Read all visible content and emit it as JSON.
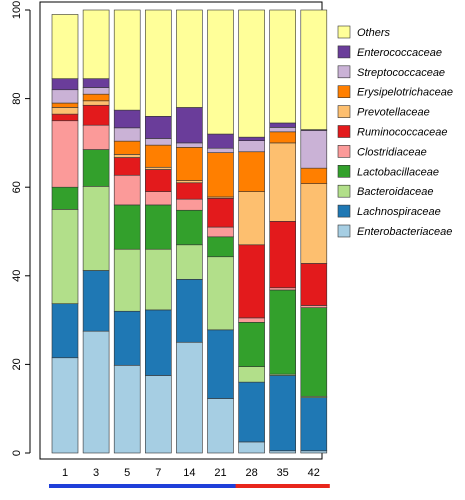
{
  "chart_data": {
    "type": "bar",
    "stacked": true,
    "categories": [
      "1",
      "3",
      "5",
      "7",
      "14",
      "21",
      "28",
      "35",
      "42"
    ],
    "ylim": [
      0,
      100
    ],
    "yticks": [
      0,
      20,
      40,
      60,
      80,
      100
    ],
    "grid": false,
    "legend_position": "right",
    "series": [
      {
        "name": "Enterobacteriaceae",
        "color": "#a6cee3",
        "values": [
          21.5,
          27.5,
          19.8,
          17.5,
          25.0,
          12.3,
          2.5,
          0.5,
          0.5
        ]
      },
      {
        "name": "Lachnospiraceae",
        "color": "#1f78b4",
        "values": [
          12.2,
          13.7,
          12.2,
          14.8,
          14.2,
          15.5,
          13.5,
          17.0,
          12.0
        ]
      },
      {
        "name": "Bacteroidaceae",
        "color": "#b2df8a",
        "values": [
          21.3,
          19.0,
          14.0,
          13.7,
          7.8,
          16.5,
          3.5,
          0.3,
          0.3
        ]
      },
      {
        "name": "Lactobacillaceae",
        "color": "#33a02c",
        "values": [
          5.0,
          8.3,
          10.0,
          10.0,
          7.8,
          4.5,
          10.0,
          19.0,
          20.0
        ]
      },
      {
        "name": "Clostridiaceae",
        "color": "#fb9a99",
        "values": [
          15.0,
          5.5,
          6.7,
          3.0,
          2.5,
          2.2,
          1.0,
          0.5,
          0.5
        ]
      },
      {
        "name": "Ruminococcaceae",
        "color": "#e31a1c",
        "values": [
          1.5,
          4.5,
          4.0,
          5.0,
          3.7,
          6.5,
          16.5,
          15.0,
          9.5
        ]
      },
      {
        "name": "Prevotellaceae",
        "color": "#fdbf6f",
        "values": [
          1.5,
          1.0,
          0.7,
          0.5,
          0.5,
          0.3,
          12.0,
          17.7,
          18.0
        ]
      },
      {
        "name": "Erysipelotrichaceae",
        "color": "#ff7f00",
        "values": [
          1.0,
          1.5,
          3.0,
          5.0,
          7.5,
          10.0,
          9.0,
          2.5,
          3.5
        ]
      },
      {
        "name": "Streptococcaceae",
        "color": "#cab2d6",
        "values": [
          3.0,
          1.5,
          3.0,
          1.5,
          1.0,
          1.0,
          2.5,
          1.0,
          8.5
        ]
      },
      {
        "name": "Enterococcaceae",
        "color": "#6a3d9a",
        "values": [
          2.5,
          2.0,
          4.0,
          5.0,
          8.0,
          3.2,
          0.8,
          1.0,
          0.2
        ]
      },
      {
        "name": "Others",
        "color": "#ffff99",
        "values": [
          14.5,
          15.5,
          22.6,
          24.0,
          22.0,
          28.0,
          28.7,
          25.5,
          27.0
        ]
      }
    ],
    "legend_order": [
      "Others",
      "Enterococcaceae",
      "Streptococcaceae",
      "Erysipelotrichaceae",
      "Prevotellaceae",
      "Ruminococcaceae",
      "Clostridiaceae",
      "Lactobacillaceae",
      "Bacteroidaceae",
      "Lachnospiraceae",
      "Enterobacteriaceae"
    ],
    "timeline_segments": [
      {
        "from": "1",
        "to": "21",
        "color": "#1f3fd9"
      },
      {
        "from": "28",
        "to": "42",
        "color": "#e8261c"
      }
    ]
  }
}
